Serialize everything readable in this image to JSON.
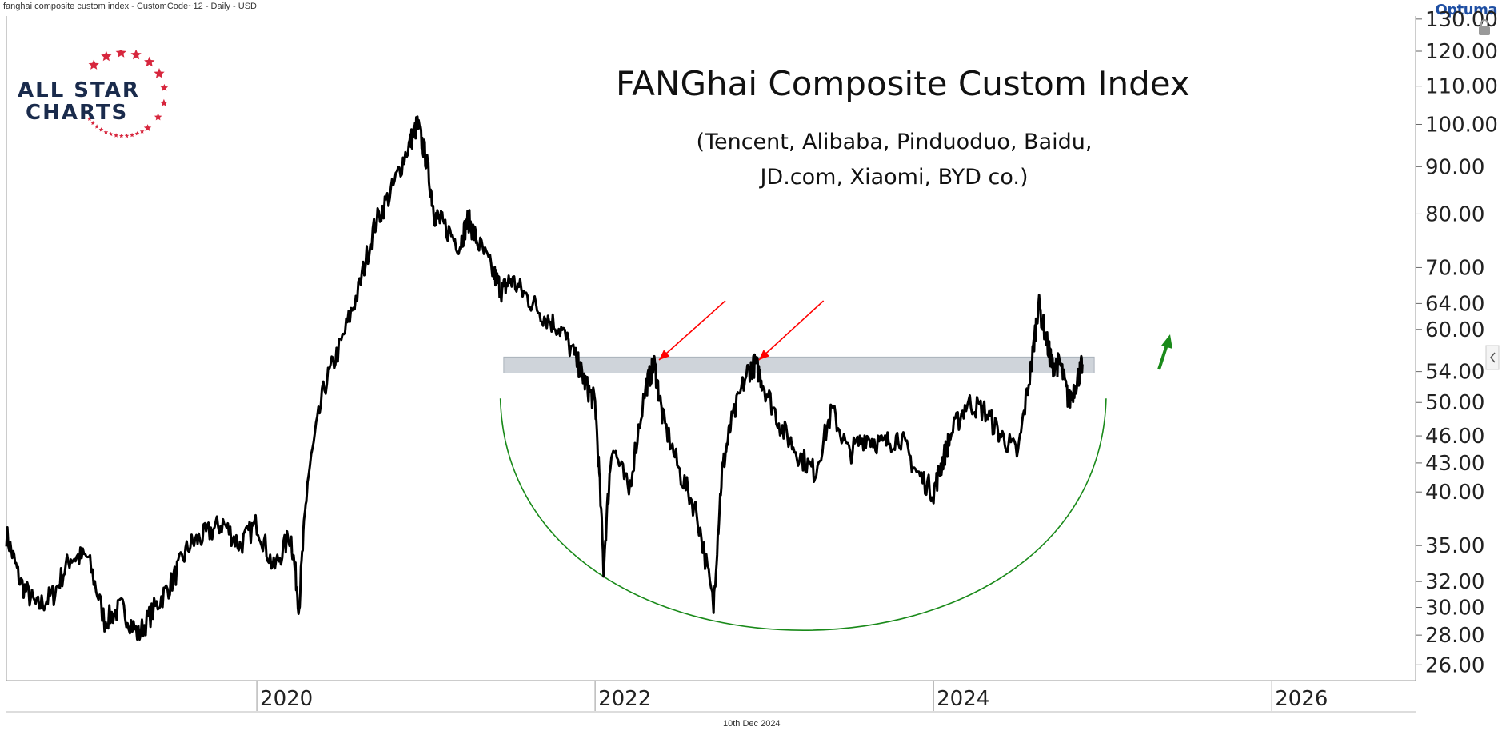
{
  "header": {
    "title": "fanghai composite custom index - CustomCode~12 - Daily - USD",
    "brand": "Optuma"
  },
  "logo": {
    "line1": "ALL STAR",
    "line2": "CHARTS",
    "star_color": "#d7263d",
    "text_color": "#1a2b4c"
  },
  "footer": {
    "date": "10th Dec 2024"
  },
  "chart_data": {
    "type": "line",
    "title": "FANGhai Composite Custom Index",
    "subtitle_lines": [
      "(Tencent, Alibaba, Pinduoduo, Baidu,",
      "JD.com, Xiaomi, BYD co.)"
    ],
    "y_scale": "log",
    "ylim": [
      25,
      131
    ],
    "y_ticks": [
      "130.00",
      "120.00",
      "110.00",
      "100.00",
      "90.00",
      "80.00",
      "70.00",
      "64.00",
      "60.00",
      "54.00",
      "50.00",
      "46.00",
      "43.00",
      "40.00",
      "35.00",
      "32.00",
      "30.00",
      "28.00",
      "26.00"
    ],
    "x_ticks": [
      "2020",
      "2022",
      "2024",
      "2026"
    ],
    "xlim": [
      2018.52,
      2026.85
    ],
    "series": [
      {
        "color": "#000000",
        "x": [
          2018.52,
          2018.6,
          2018.7,
          2018.8,
          2018.9,
          2019.0,
          2019.1,
          2019.2,
          2019.3,
          2019.4,
          2019.5,
          2019.6,
          2019.7,
          2019.8,
          2019.9,
          2020.0,
          2020.1,
          2020.2,
          2020.25,
          2020.3,
          2020.4,
          2020.5,
          2020.6,
          2020.7,
          2020.8,
          2020.9,
          2020.95,
          2021.0,
          2021.05,
          2021.1,
          2021.2,
          2021.25,
          2021.3,
          2021.4,
          2021.45,
          2021.5,
          2021.6,
          2021.7,
          2021.8,
          2021.9,
          2021.95,
          2022.0,
          2022.05,
          2022.1,
          2022.2,
          2022.3,
          2022.35,
          2022.4,
          2022.5,
          2022.6,
          2022.7,
          2022.75,
          2022.8,
          2022.9,
          2022.95,
          2023.0,
          2023.1,
          2023.2,
          2023.3,
          2023.4,
          2023.5,
          2023.6,
          2023.7,
          2023.8,
          2023.9,
          2024.0,
          2024.05,
          2024.1,
          2024.2,
          2024.3,
          2024.4,
          2024.5,
          2024.58,
          2024.62,
          2024.68,
          2024.7,
          2024.75,
          2024.8,
          2024.85,
          2024.88
        ],
        "y": [
          36,
          32,
          30,
          31,
          34,
          34,
          29,
          30,
          28,
          30,
          32,
          35,
          36,
          37,
          35,
          37,
          33,
          36,
          30,
          41,
          52,
          58,
          66,
          78,
          85,
          95,
          100,
          92,
          80,
          78,
          74,
          79,
          75,
          69,
          66,
          68,
          65,
          62,
          60,
          55,
          52,
          50,
          33,
          45,
          40,
          52,
          55,
          48,
          42,
          38,
          30,
          42,
          47,
          54,
          55,
          52,
          47,
          44,
          42,
          49,
          44,
          46,
          45,
          46,
          42,
          40,
          43,
          46,
          50,
          49,
          46,
          44,
          55,
          64,
          57,
          55,
          55,
          50,
          53,
          55
        ]
      }
    ],
    "annotations": {
      "resistance_band_low": 53.8,
      "resistance_band_high": 56.0,
      "resistance_color": "#cfd4da",
      "arrows_color": "#ff0000",
      "breakout_arrow_color": "#1a8a1a",
      "base_curve_color": "#1a8a1a"
    }
  }
}
